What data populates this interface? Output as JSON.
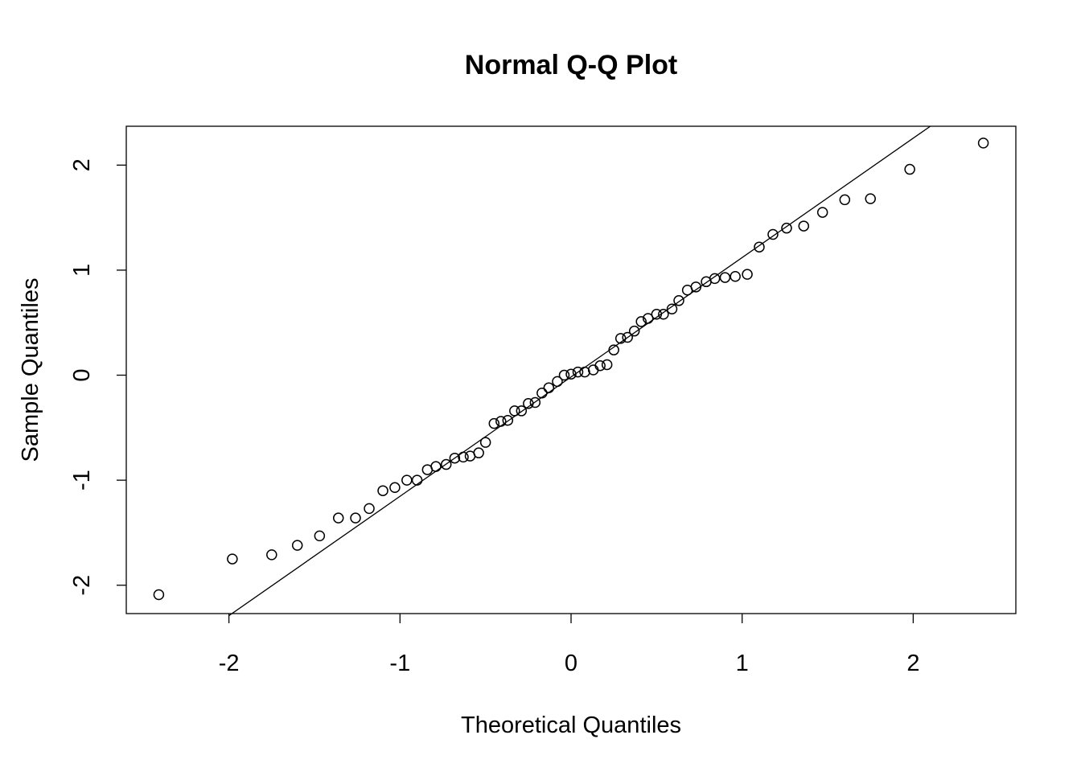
{
  "chart_data": {
    "type": "scatter",
    "title": "Normal Q-Q Plot",
    "xlabel": "Theoretical Quantiles",
    "ylabel": "Sample Quantiles",
    "xlim": [
      -2.6,
      2.6
    ],
    "ylim": [
      -2.27,
      2.37
    ],
    "x_ticks": [
      -2,
      -1,
      0,
      1,
      2
    ],
    "y_ticks": [
      -2,
      -1,
      0,
      1,
      2
    ],
    "x_tick_labels": [
      "-2",
      "-1",
      "0",
      "1",
      "2"
    ],
    "y_tick_labels": [
      "-2",
      "-1",
      "0",
      "1",
      "2"
    ],
    "grid": false,
    "legend": "none",
    "reference_line": {
      "x1": -2.0,
      "y1": -2.29,
      "x2": 2.1,
      "y2": 2.37
    },
    "points": {
      "x": [
        -2.41,
        -1.98,
        -1.75,
        -1.6,
        -1.47,
        -1.36,
        -1.26,
        -1.18,
        -1.1,
        -1.03,
        -0.96,
        -0.9,
        -0.84,
        -0.79,
        -0.73,
        -0.68,
        -0.63,
        -0.59,
        -0.54,
        -0.5,
        -0.45,
        -0.41,
        -0.37,
        -0.33,
        -0.29,
        -0.25,
        -0.21,
        -0.17,
        -0.13,
        -0.08,
        -0.04,
        0.0,
        0.04,
        0.08,
        0.13,
        0.17,
        0.21,
        0.25,
        0.29,
        0.33,
        0.37,
        0.41,
        0.45,
        0.5,
        0.54,
        0.59,
        0.63,
        0.68,
        0.73,
        0.79,
        0.84,
        0.9,
        0.96,
        1.03,
        1.1,
        1.18,
        1.26,
        1.36,
        1.47,
        1.6,
        1.75,
        1.98,
        2.41
      ],
      "y": [
        -2.09,
        -1.75,
        -1.71,
        -1.62,
        -1.53,
        -1.36,
        -1.36,
        -1.27,
        -1.1,
        -1.07,
        -1.0,
        -1.0,
        -0.9,
        -0.87,
        -0.85,
        -0.79,
        -0.78,
        -0.77,
        -0.74,
        -0.64,
        -0.46,
        -0.44,
        -0.43,
        -0.34,
        -0.34,
        -0.27,
        -0.26,
        -0.17,
        -0.12,
        -0.06,
        0.0,
        0.01,
        0.03,
        0.03,
        0.05,
        0.09,
        0.1,
        0.24,
        0.35,
        0.36,
        0.42,
        0.51,
        0.54,
        0.58,
        0.58,
        0.63,
        0.71,
        0.81,
        0.84,
        0.89,
        0.92,
        0.93,
        0.94,
        0.96,
        1.22,
        1.34,
        1.4,
        1.42,
        1.55,
        1.67,
        1.68,
        1.96,
        2.21
      ]
    }
  }
}
